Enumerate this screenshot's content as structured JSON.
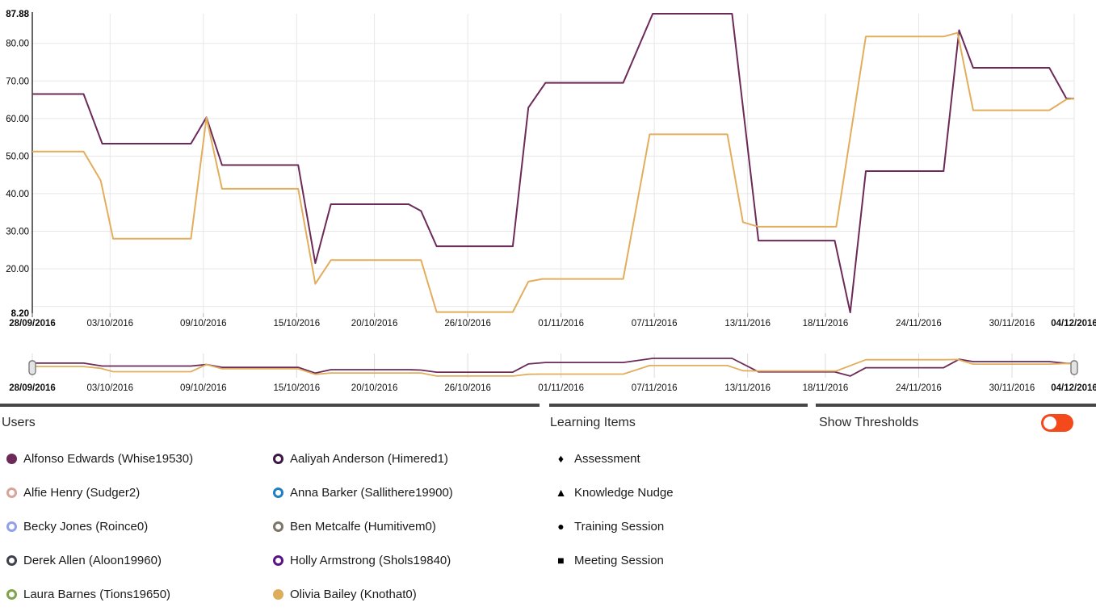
{
  "chart_data": {
    "type": "line",
    "title": "",
    "xlabel": "",
    "ylabel": "",
    "grid": true,
    "legend_position": "bottom",
    "x_axis": {
      "unit": "date",
      "total_days": 67,
      "ticks": [
        {
          "day": 0,
          "label": "28/09/2016",
          "bold": true
        },
        {
          "day": 5,
          "label": "03/10/2016",
          "bold": false
        },
        {
          "day": 11,
          "label": "09/10/2016",
          "bold": false
        },
        {
          "day": 17,
          "label": "15/10/2016",
          "bold": false
        },
        {
          "day": 22,
          "label": "20/10/2016",
          "bold": false
        },
        {
          "day": 28,
          "label": "26/10/2016",
          "bold": false
        },
        {
          "day": 34,
          "label": "01/11/2016",
          "bold": false
        },
        {
          "day": 40,
          "label": "07/11/2016",
          "bold": false
        },
        {
          "day": 46,
          "label": "13/11/2016",
          "bold": false
        },
        {
          "day": 51,
          "label": "18/11/2016",
          "bold": false
        },
        {
          "day": 57,
          "label": "24/11/2016",
          "bold": false
        },
        {
          "day": 63,
          "label": "30/11/2016",
          "bold": false
        },
        {
          "day": 67,
          "label": "04/12/2016",
          "bold": true
        }
      ]
    },
    "y_axis": {
      "min": 8.2,
      "max": 87.88,
      "gridlines": [
        10,
        20,
        30,
        40,
        50,
        60,
        70,
        80
      ],
      "ticks": [
        {
          "v": 87.88,
          "label": "87.88",
          "bold": true
        },
        {
          "v": 80,
          "label": "80.00",
          "bold": false
        },
        {
          "v": 70,
          "label": "70.00",
          "bold": false
        },
        {
          "v": 60,
          "label": "60.00",
          "bold": false
        },
        {
          "v": 50,
          "label": "50.00",
          "bold": false
        },
        {
          "v": 40,
          "label": "40.00",
          "bold": false
        },
        {
          "v": 30,
          "label": "30.00",
          "bold": false
        },
        {
          "v": 20,
          "label": "20.00",
          "bold": false
        },
        {
          "v": 8.2,
          "label": "8.20",
          "bold": true
        }
      ]
    },
    "series": [
      {
        "name": "Alfonso Edwards (Whise19530)",
        "color": "#6b2a58",
        "points": [
          [
            0,
            66.5
          ],
          [
            3.3,
            66.5
          ],
          [
            4.5,
            53.3
          ],
          [
            10.2,
            53.3
          ],
          [
            11.2,
            60.3
          ],
          [
            12.2,
            47.6
          ],
          [
            17.1,
            47.6
          ],
          [
            18.2,
            21.5
          ],
          [
            19.2,
            37.2
          ],
          [
            24.2,
            37.2
          ],
          [
            25,
            35.4
          ],
          [
            26,
            26
          ],
          [
            30.9,
            26
          ],
          [
            31.9,
            62.9
          ],
          [
            33,
            69.5
          ],
          [
            38,
            69.5
          ],
          [
            39.9,
            87.88
          ],
          [
            45,
            87.88
          ],
          [
            46.7,
            27.5
          ],
          [
            51.6,
            27.5
          ],
          [
            52.6,
            8.4
          ],
          [
            53.6,
            46
          ],
          [
            58.6,
            46
          ],
          [
            59.6,
            83.5
          ],
          [
            60.5,
            73.5
          ],
          [
            65.4,
            73.5
          ],
          [
            66.5,
            65.3
          ],
          [
            67,
            65.3
          ]
        ]
      },
      {
        "name": "Olivia Bailey (Knothat0)",
        "color": "#e2ae5c",
        "points": [
          [
            0,
            51.2
          ],
          [
            3.3,
            51.2
          ],
          [
            4.4,
            43.5
          ],
          [
            5.2,
            28
          ],
          [
            10.2,
            28
          ],
          [
            11.2,
            60.2
          ],
          [
            12.2,
            41.3
          ],
          [
            17.1,
            41.3
          ],
          [
            18.2,
            16
          ],
          [
            19.2,
            22.3
          ],
          [
            25,
            22.3
          ],
          [
            26,
            8.5
          ],
          [
            30.9,
            8.5
          ],
          [
            31.9,
            16.6
          ],
          [
            32.8,
            17.3
          ],
          [
            38,
            17.3
          ],
          [
            39.7,
            55.8
          ],
          [
            44.7,
            55.8
          ],
          [
            45.7,
            32.4
          ],
          [
            46.7,
            31.2
          ],
          [
            51.7,
            31.2
          ],
          [
            53.6,
            81.8
          ],
          [
            58.6,
            81.8
          ],
          [
            59.5,
            82.8
          ],
          [
            60.5,
            62.2
          ],
          [
            65.4,
            62.2
          ],
          [
            66.5,
            65.1
          ],
          [
            67,
            65.3
          ]
        ]
      }
    ],
    "range_selector": {
      "description": "miniature overview of same two series with drag handles at both ends",
      "handle_positions_days": [
        0,
        67
      ]
    }
  },
  "legend": {
    "users": {
      "title": "Users",
      "items": [
        {
          "label": "Alfonso Edwards (Whise19530)",
          "color": "#6b2a58",
          "filled": true
        },
        {
          "label": "Aaliyah Anderson (Himered1)",
          "color": "#3a1840",
          "filled": false
        },
        {
          "label": "Alfie Henry (Sudger2)",
          "color": "#d8a49a",
          "filled": false
        },
        {
          "label": "Anna Barker (Sallithere19900)",
          "color": "#1e7fc2",
          "filled": false
        },
        {
          "label": "Becky Jones (Roince0)",
          "color": "#91a0e8",
          "filled": false
        },
        {
          "label": "Ben Metcalfe (Humitivem0)",
          "color": "#7d7668",
          "filled": false
        },
        {
          "label": "Derek Allen (Aloon19960)",
          "color": "#3d414d",
          "filled": false
        },
        {
          "label": "Holly Armstrong (Shols19840)",
          "color": "#5b1382",
          "filled": false
        },
        {
          "label": "Laura Barnes (Tions19650)",
          "color": "#80a448",
          "filled": false
        },
        {
          "label": "Olivia Bailey (Knothat0)",
          "color": "#ddad5c",
          "filled": true
        }
      ]
    },
    "learning_items": {
      "title": "Learning Items",
      "items": [
        {
          "label": "Assessment",
          "marker": "diamond-icon",
          "glyph": "♦"
        },
        {
          "label": "Knowledge Nudge",
          "marker": "triangle-icon",
          "glyph": "▲"
        },
        {
          "label": "Training Session",
          "marker": "circle-icon",
          "glyph": "●"
        },
        {
          "label": "Meeting Session",
          "marker": "square-icon",
          "glyph": "■"
        }
      ]
    },
    "thresholds": {
      "title": "Show Thresholds",
      "state": "off",
      "toggle_color": "#f4491b"
    }
  }
}
